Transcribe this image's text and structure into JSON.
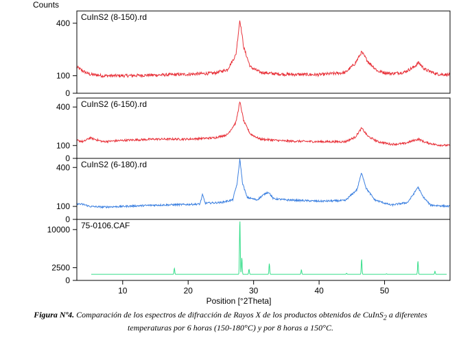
{
  "figure": {
    "counts_label": "Counts",
    "xlabel": "Position [°2Theta]",
    "caption": {
      "label": "Figura Nº4.",
      "line1": "Comparación de los espectros de difracción de Rayos X de los productos obtenidos de CuInS",
      "subscript": "2",
      "line1_end": " a diferentes",
      "line2": "temperaturas por 6 horas (150-180°C) y  por 8 horas a 150°C."
    }
  },
  "chart_data": [
    {
      "type": "line",
      "title": "CuInS2 (8-150).rd",
      "color": "#e8323a",
      "xlim": [
        3,
        60
      ],
      "ylim": [
        0,
        470
      ],
      "yticks": [
        0,
        100,
        400
      ],
      "baseline": [
        [
          3,
          150
        ],
        [
          4,
          125
        ],
        [
          5,
          108
        ],
        [
          7,
          100
        ],
        [
          10,
          100
        ],
        [
          15,
          104
        ],
        [
          20,
          108
        ],
        [
          24,
          115
        ],
        [
          26,
          135
        ],
        [
          27.3,
          220
        ],
        [
          27.9,
          420
        ],
        [
          28.5,
          260
        ],
        [
          29.5,
          150
        ],
        [
          31,
          120
        ],
        [
          33,
          112
        ],
        [
          35,
          108
        ],
        [
          40,
          106
        ],
        [
          44,
          118
        ],
        [
          45.5,
          170
        ],
        [
          46.5,
          235
        ],
        [
          47.5,
          180
        ],
        [
          49,
          125
        ],
        [
          51,
          112
        ],
        [
          53,
          120
        ],
        [
          54.5,
          150
        ],
        [
          55.2,
          175
        ],
        [
          56.2,
          135
        ],
        [
          58,
          110
        ],
        [
          60,
          105
        ]
      ],
      "noise": 9
    },
    {
      "type": "line",
      "title": "CuInS2 (6-150).rd",
      "color": "#e8323a",
      "xlim": [
        3,
        60
      ],
      "ylim": [
        0,
        470
      ],
      "yticks": [
        0,
        100,
        400
      ],
      "baseline": [
        [
          3,
          140
        ],
        [
          4,
          130
        ],
        [
          5,
          160
        ],
        [
          7,
          130
        ],
        [
          10,
          140
        ],
        [
          15,
          150
        ],
        [
          20,
          150
        ],
        [
          24,
          160
        ],
        [
          26,
          185
        ],
        [
          27.3,
          280
        ],
        [
          27.9,
          440
        ],
        [
          28.5,
          290
        ],
        [
          29.5,
          190
        ],
        [
          31,
          150
        ],
        [
          35,
          135
        ],
        [
          40,
          130
        ],
        [
          44,
          130
        ],
        [
          45.5,
          165
        ],
        [
          46.5,
          235
        ],
        [
          47.5,
          170
        ],
        [
          49,
          130
        ],
        [
          51,
          110
        ],
        [
          53,
          115
        ],
        [
          54.5,
          140
        ],
        [
          55.2,
          150
        ],
        [
          56.2,
          125
        ],
        [
          58,
          105
        ],
        [
          60,
          100
        ]
      ],
      "noise": 8
    },
    {
      "type": "line",
      "title": "CuInS2 (6-180).rd",
      "color": "#3a7fe0",
      "xlim": [
        3,
        60
      ],
      "ylim": [
        0,
        470
      ],
      "yticks": [
        0,
        100,
        400
      ],
      "baseline": [
        [
          3,
          120
        ],
        [
          4,
          115
        ],
        [
          5,
          100
        ],
        [
          7,
          95
        ],
        [
          10,
          100
        ],
        [
          15,
          110
        ],
        [
          20,
          115
        ],
        [
          21.8,
          118
        ],
        [
          22.2,
          190
        ],
        [
          22.6,
          125
        ],
        [
          25,
          130
        ],
        [
          26.8,
          150
        ],
        [
          27.5,
          280
        ],
        [
          27.9,
          465
        ],
        [
          28.3,
          280
        ],
        [
          29,
          170
        ],
        [
          30.5,
          150
        ],
        [
          31.8,
          200
        ],
        [
          32.3,
          210
        ],
        [
          33,
          160
        ],
        [
          35,
          150
        ],
        [
          40,
          140
        ],
        [
          44,
          145
        ],
        [
          45.8,
          230
        ],
        [
          46.5,
          360
        ],
        [
          47.2,
          240
        ],
        [
          48.5,
          150
        ],
        [
          51,
          110
        ],
        [
          53.5,
          130
        ],
        [
          54.5,
          200
        ],
        [
          55.1,
          250
        ],
        [
          55.8,
          180
        ],
        [
          57,
          110
        ],
        [
          60,
          100
        ]
      ],
      "noise": 7
    },
    {
      "type": "line",
      "title": "75-0106.CAF",
      "color": "#33dd88",
      "xlim": [
        3,
        60
      ],
      "ylim": [
        0,
        12000
      ],
      "yticks": [
        0,
        2500,
        10000
      ],
      "sticks": [
        [
          5.2,
          1200
        ],
        [
          17.9,
          2400
        ],
        [
          27.9,
          12000
        ],
        [
          28.2,
          4500
        ],
        [
          29.3,
          2200
        ],
        [
          32.4,
          3300
        ],
        [
          37.3,
          2100
        ],
        [
          44.2,
          1400
        ],
        [
          46.5,
          4200
        ],
        [
          50.3,
          1300
        ],
        [
          55.1,
          3800
        ],
        [
          57.7,
          1800
        ],
        [
          59.5,
          1200
        ]
      ],
      "base": 1200
    }
  ],
  "x_axis": {
    "ticks": [
      10,
      20,
      30,
      40,
      50
    ]
  }
}
